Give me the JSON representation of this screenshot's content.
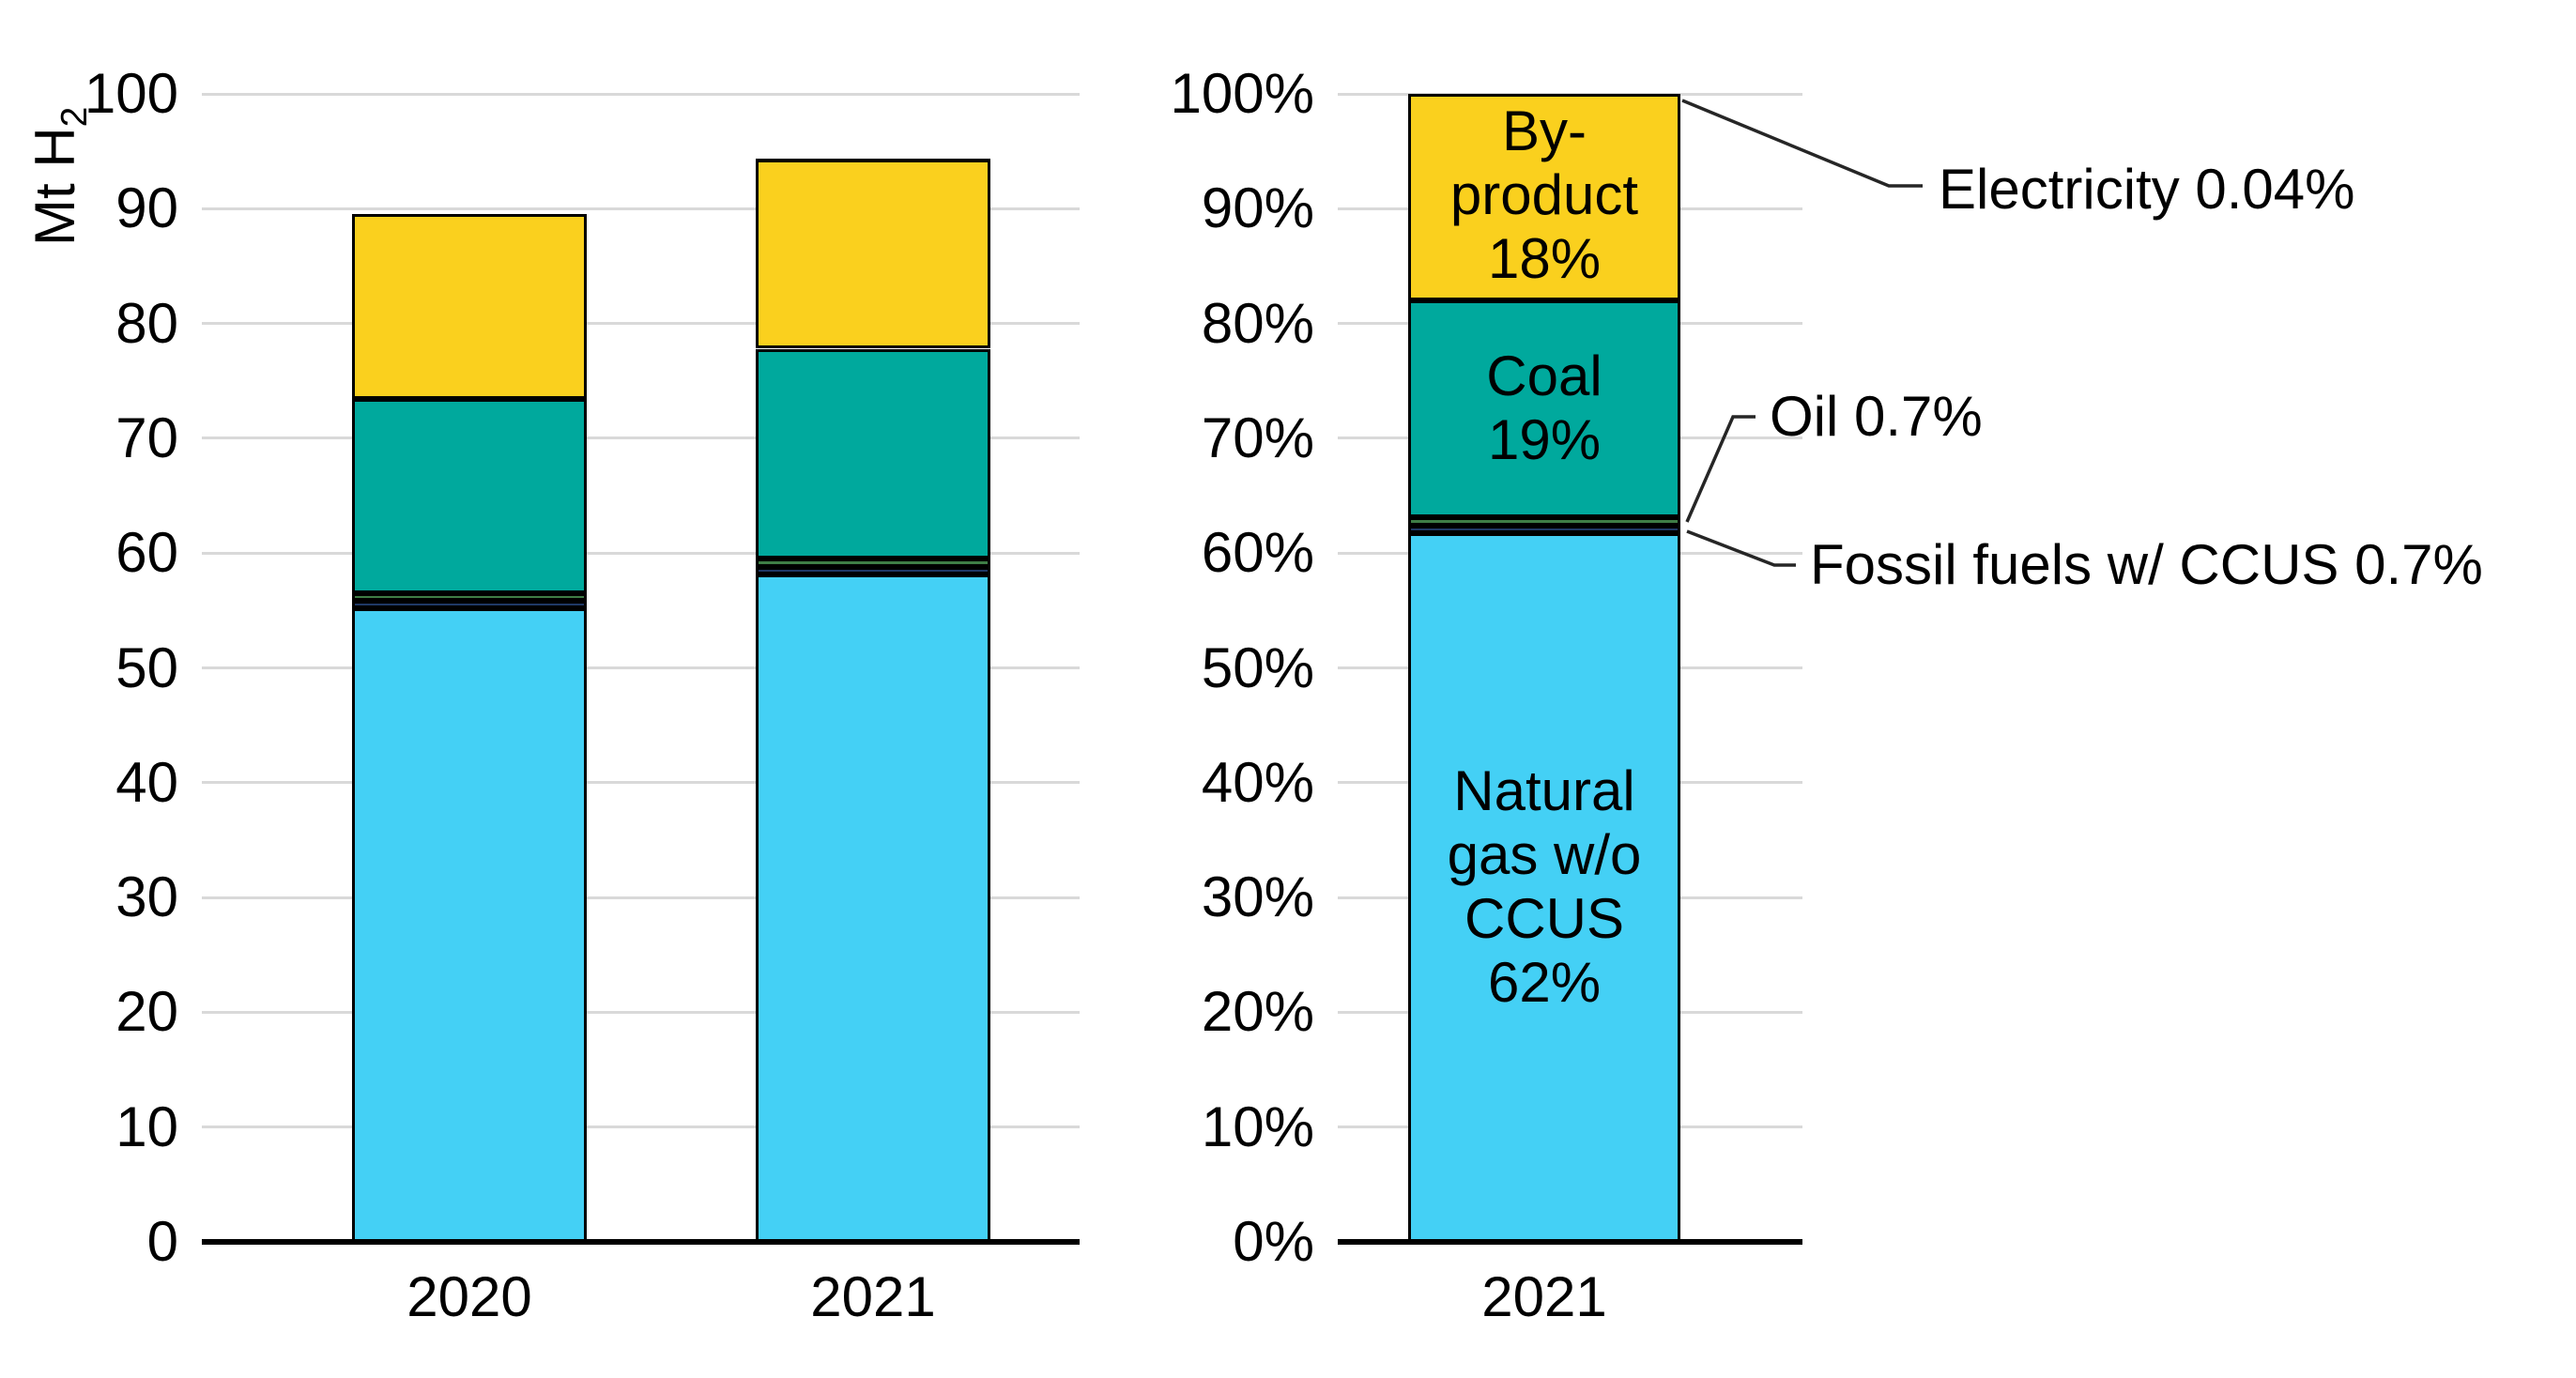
{
  "colors": {
    "background": "#ffffff",
    "grid": "#d9d9d9",
    "axis": "#000000",
    "text": "#000000",
    "bar_border": "#000000",
    "leader_line": "#262626",
    "natural_gas": "#44d0f5",
    "fossil_ccus": "#1f3864",
    "oil": "#3f7d46",
    "coal": "#00a99d",
    "byproduct": "#fad01e",
    "electricity": "#000000"
  },
  "chart_data": [
    {
      "type": "bar",
      "subtype": "stacked",
      "title": "",
      "ylabel_main": "Mt H",
      "ylabel_sub": "2",
      "xlabel": "",
      "categories": [
        "2020",
        "2021"
      ],
      "ylim": [
        0,
        100
      ],
      "ystep": 10,
      "ytick_labels": [
        "0",
        "10",
        "20",
        "30",
        "40",
        "50",
        "60",
        "70",
        "80",
        "90",
        "100"
      ],
      "grid": true,
      "legend": "none (segments labelled in companion percent chart)",
      "totals_mt_estimated": [
        89.5,
        94.3
      ],
      "series": [
        {
          "name": "Natural gas w/o CCUS",
          "color": "#44d0f5",
          "values": [
            55.2,
            58.1
          ]
        },
        {
          "name": "Fossil fuels w/ CCUS",
          "color": "#1f3864",
          "values": [
            0.65,
            0.7
          ]
        },
        {
          "name": "Oil",
          "color": "#3f7d46",
          "values": [
            0.65,
            0.7
          ]
        },
        {
          "name": "Coal",
          "color": "#00a99d",
          "values": [
            16.9,
            18.3
          ]
        },
        {
          "name": "By-product",
          "color": "#fad01e",
          "values": [
            16.1,
            16.5
          ]
        },
        {
          "name": "Electricity",
          "color": "#000000",
          "values": [
            0.03,
            0.04
          ]
        }
      ]
    },
    {
      "type": "bar",
      "subtype": "stacked-percent",
      "title": "",
      "xlabel": "",
      "unit": "%",
      "categories": [
        "2021"
      ],
      "ylim": [
        0,
        100
      ],
      "ystep": 10,
      "ytick_labels": [
        "0%",
        "10%",
        "20%",
        "30%",
        "40%",
        "50%",
        "60%",
        "70%",
        "80%",
        "90%",
        "100%"
      ],
      "grid": true,
      "series": [
        {
          "name": "Natural gas w/o CCUS",
          "color": "#44d0f5",
          "values": [
            62
          ],
          "inbar_lines": [
            "Natural",
            "gas w/o",
            "CCUS",
            "62%"
          ]
        },
        {
          "name": "Fossil fuels w/ CCUS",
          "color": "#1f3864",
          "values": [
            0.7
          ]
        },
        {
          "name": "Oil",
          "color": "#3f7d46",
          "values": [
            0.7
          ]
        },
        {
          "name": "Coal",
          "color": "#00a99d",
          "values": [
            19
          ],
          "inbar_lines": [
            "Coal",
            "19%"
          ]
        },
        {
          "name": "By-product",
          "color": "#fad01e",
          "values": [
            18
          ],
          "inbar_lines": [
            "By-",
            "product",
            "18%"
          ]
        },
        {
          "name": "Electricity",
          "color": "#000000",
          "values": [
            0.04
          ]
        }
      ],
      "annotations": [
        {
          "target": "Electricity",
          "text": "Electricity 0.04%"
        },
        {
          "target": "Oil",
          "text": "Oil 0.7%"
        },
        {
          "target": "Fossil fuels w/ CCUS",
          "text": "Fossil fuels w/ CCUS 0.7%"
        }
      ]
    }
  ]
}
